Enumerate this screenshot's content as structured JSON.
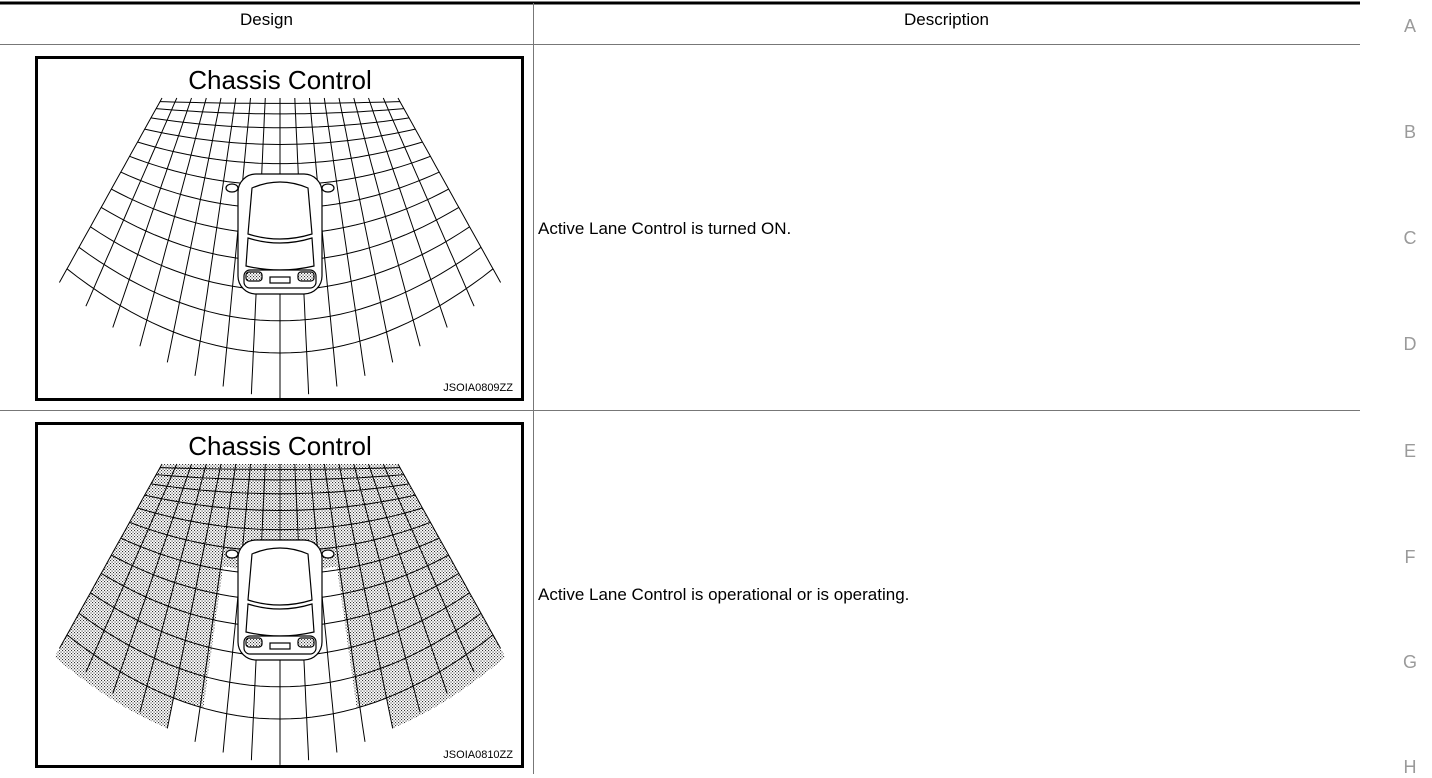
{
  "table": {
    "header": [
      "Design",
      "Description"
    ],
    "rows": [
      {
        "image": {
          "title": "Chassis Control",
          "code": "JSOIA0809ZZ"
        },
        "description": "Active Lane Control is turned ON."
      },
      {
        "image": {
          "title": "Chassis Control",
          "code": "JSOIA0810ZZ"
        },
        "description": "Active Lane Control is operational or is operating."
      }
    ]
  },
  "margin_letters": [
    "A",
    "B",
    "C",
    "D",
    "E",
    "F",
    "G",
    "H"
  ]
}
